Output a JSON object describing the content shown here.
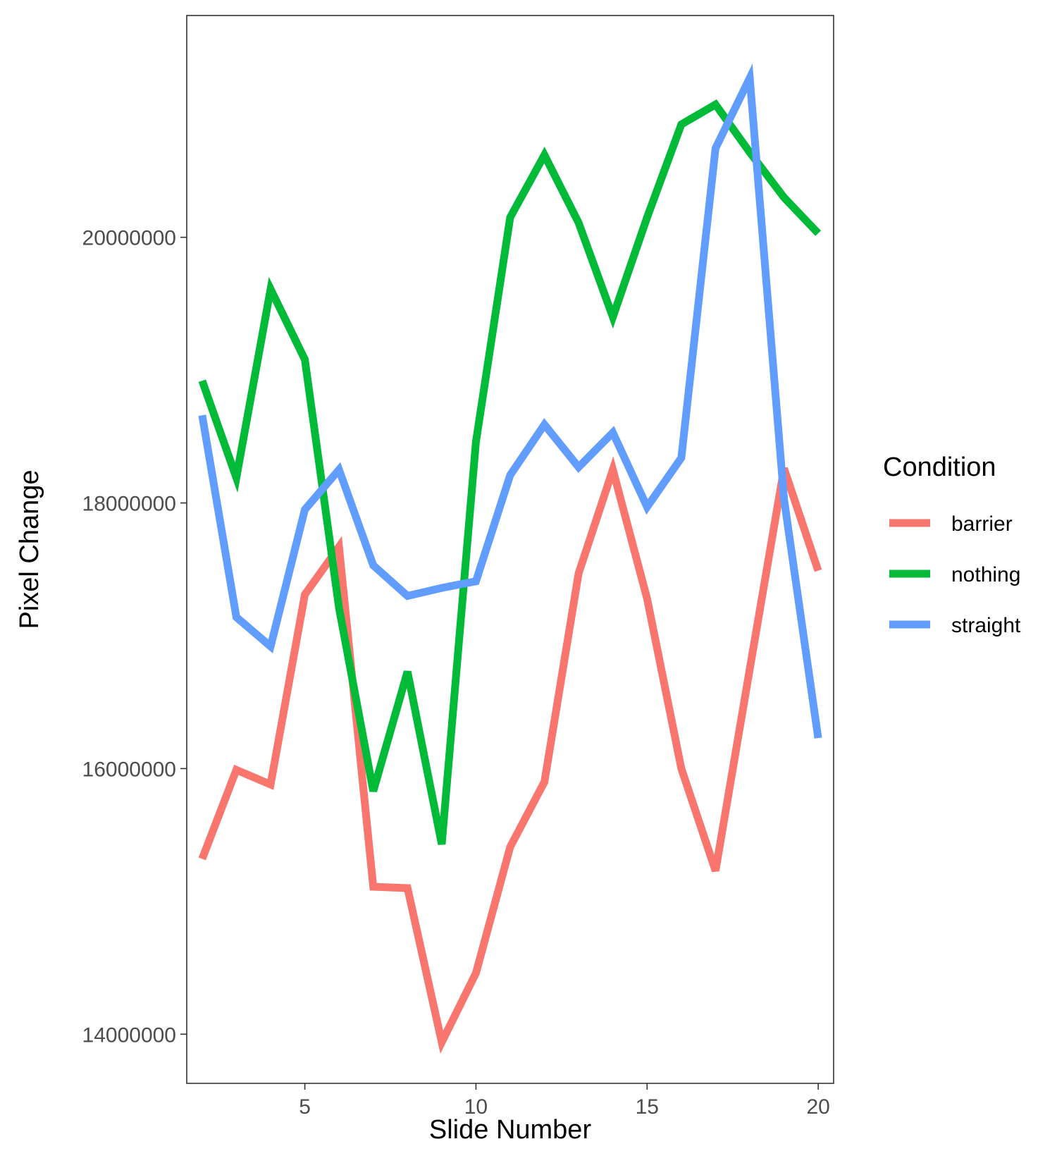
{
  "chart_data": {
    "type": "line",
    "title": "",
    "xlabel": "Slide Number",
    "ylabel": "Pixel Change",
    "xlim": [
      1.55,
      20.45
    ],
    "ylim": [
      13630000,
      21670000
    ],
    "x_ticks": [
      5,
      10,
      15,
      20
    ],
    "x_tick_labels": [
      "5",
      "10",
      "15",
      "20"
    ],
    "y_ticks": [
      14000000,
      16000000,
      18000000,
      20000000
    ],
    "y_tick_labels": [
      "14000000",
      "16000000",
      "18000000",
      "20000000"
    ],
    "grid": false,
    "legend": {
      "title": "Condition",
      "position": "right"
    },
    "x": [
      2,
      3,
      4,
      5,
      6,
      7,
      8,
      9,
      10,
      11,
      12,
      13,
      14,
      15,
      16,
      17,
      18,
      19,
      20
    ],
    "series": [
      {
        "name": "barrier",
        "color": "#F8766D",
        "values": [
          15320000,
          15990000,
          15880000,
          17310000,
          17670000,
          15110000,
          15100000,
          13940000,
          14460000,
          15410000,
          15900000,
          17470000,
          18250000,
          17280000,
          16000000,
          15230000,
          16750000,
          18260000,
          17490000
        ]
      },
      {
        "name": "nothing",
        "color": "#00BA38",
        "values": [
          18920000,
          18190000,
          19610000,
          19080000,
          17210000,
          15830000,
          16730000,
          15430000,
          18460000,
          20150000,
          20620000,
          20110000,
          19400000,
          20150000,
          20850000,
          21000000,
          20640000,
          20300000,
          20030000
        ]
      },
      {
        "name": "straight",
        "color": "#619CFF",
        "values": [
          18660000,
          17140000,
          16920000,
          17950000,
          18250000,
          17530000,
          17300000,
          17360000,
          17410000,
          18210000,
          18590000,
          18270000,
          18530000,
          17970000,
          18340000,
          20670000,
          21200000,
          18030000,
          16230000
        ]
      }
    ]
  }
}
